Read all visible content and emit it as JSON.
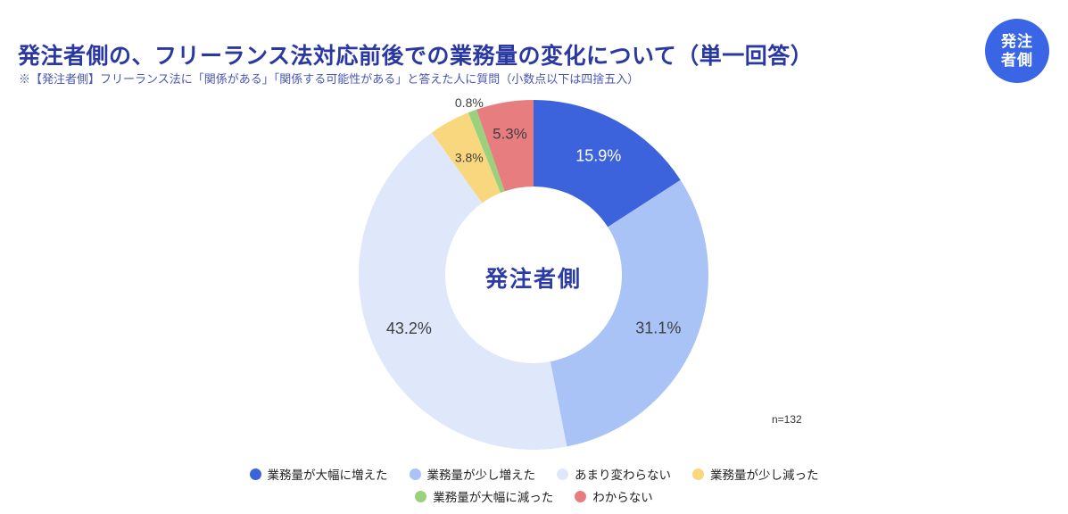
{
  "page": {
    "title": "発注者側の、フリーランス法対応前後での業務量の変化について（単一回答）",
    "subtitle": "※【発注者側】フリーランス法に「関係がある」「関係する可能性がある」と答えた人に質問（小数点以下は四捨五入）",
    "badge": {
      "line1": "発注",
      "line2": "者側"
    },
    "sample_size_label": "n=132"
  },
  "colors": {
    "title": "#2A38A2",
    "subtitle": "#4A57B5",
    "badge_background": "#3A66E6",
    "badge_text": "#FFFFFF",
    "center_label": "#2B3CA8",
    "label_dark": "#3F3F3F",
    "label_light": "#FFFFFF",
    "background": "#FFFFFF"
  },
  "chart_data": {
    "type": "pie",
    "subtype": "donut",
    "title": "発注者側の、フリーランス法対応前後での業務量の変化について（単一回答）",
    "center_label": "発注者側",
    "n": 132,
    "start_angle_deg": 0,
    "direction": "clockwise",
    "legend_position": "bottom",
    "grid": false,
    "series": [
      {
        "label": "業務量が大幅に増えた",
        "value": 15.9,
        "display": "15.9%",
        "color": "#3D63DC",
        "label_placement": "inside",
        "label_color": "#FFFFFF",
        "label_size": 18,
        "label_radius": 152
      },
      {
        "label": "業務量が少し増えた",
        "value": 31.1,
        "display": "31.1%",
        "color": "#A9C3F6",
        "label_placement": "inside",
        "label_color": "#3F3F3F",
        "label_size": 18,
        "label_radius": 152
      },
      {
        "label": "あまり変わらない",
        "value": 43.2,
        "display": "43.2%",
        "color": "#DFE8FB",
        "label_placement": "inside",
        "label_color": "#3F3F3F",
        "label_size": 18,
        "label_radius": 152
      },
      {
        "label": "業務量が少し減った",
        "value": 3.8,
        "display": "3.8%",
        "color": "#F9D77F",
        "label_placement": "inside",
        "label_color": "#3F3F3F",
        "label_size": 14,
        "label_radius": 150
      },
      {
        "label": "業務量が大幅に減った",
        "value": 0.8,
        "display": "0.8%",
        "color": "#9AD17D",
        "label_placement": "outside",
        "label_color": "#3F3F3F",
        "label_size": 14,
        "label_radius": 206
      },
      {
        "label": "わからない",
        "value": 5.3,
        "display": "5.3%",
        "color": "#E87D80",
        "label_placement": "inside",
        "label_color": "#3F3F3F",
        "label_size": 17,
        "label_radius": 160
      }
    ]
  }
}
